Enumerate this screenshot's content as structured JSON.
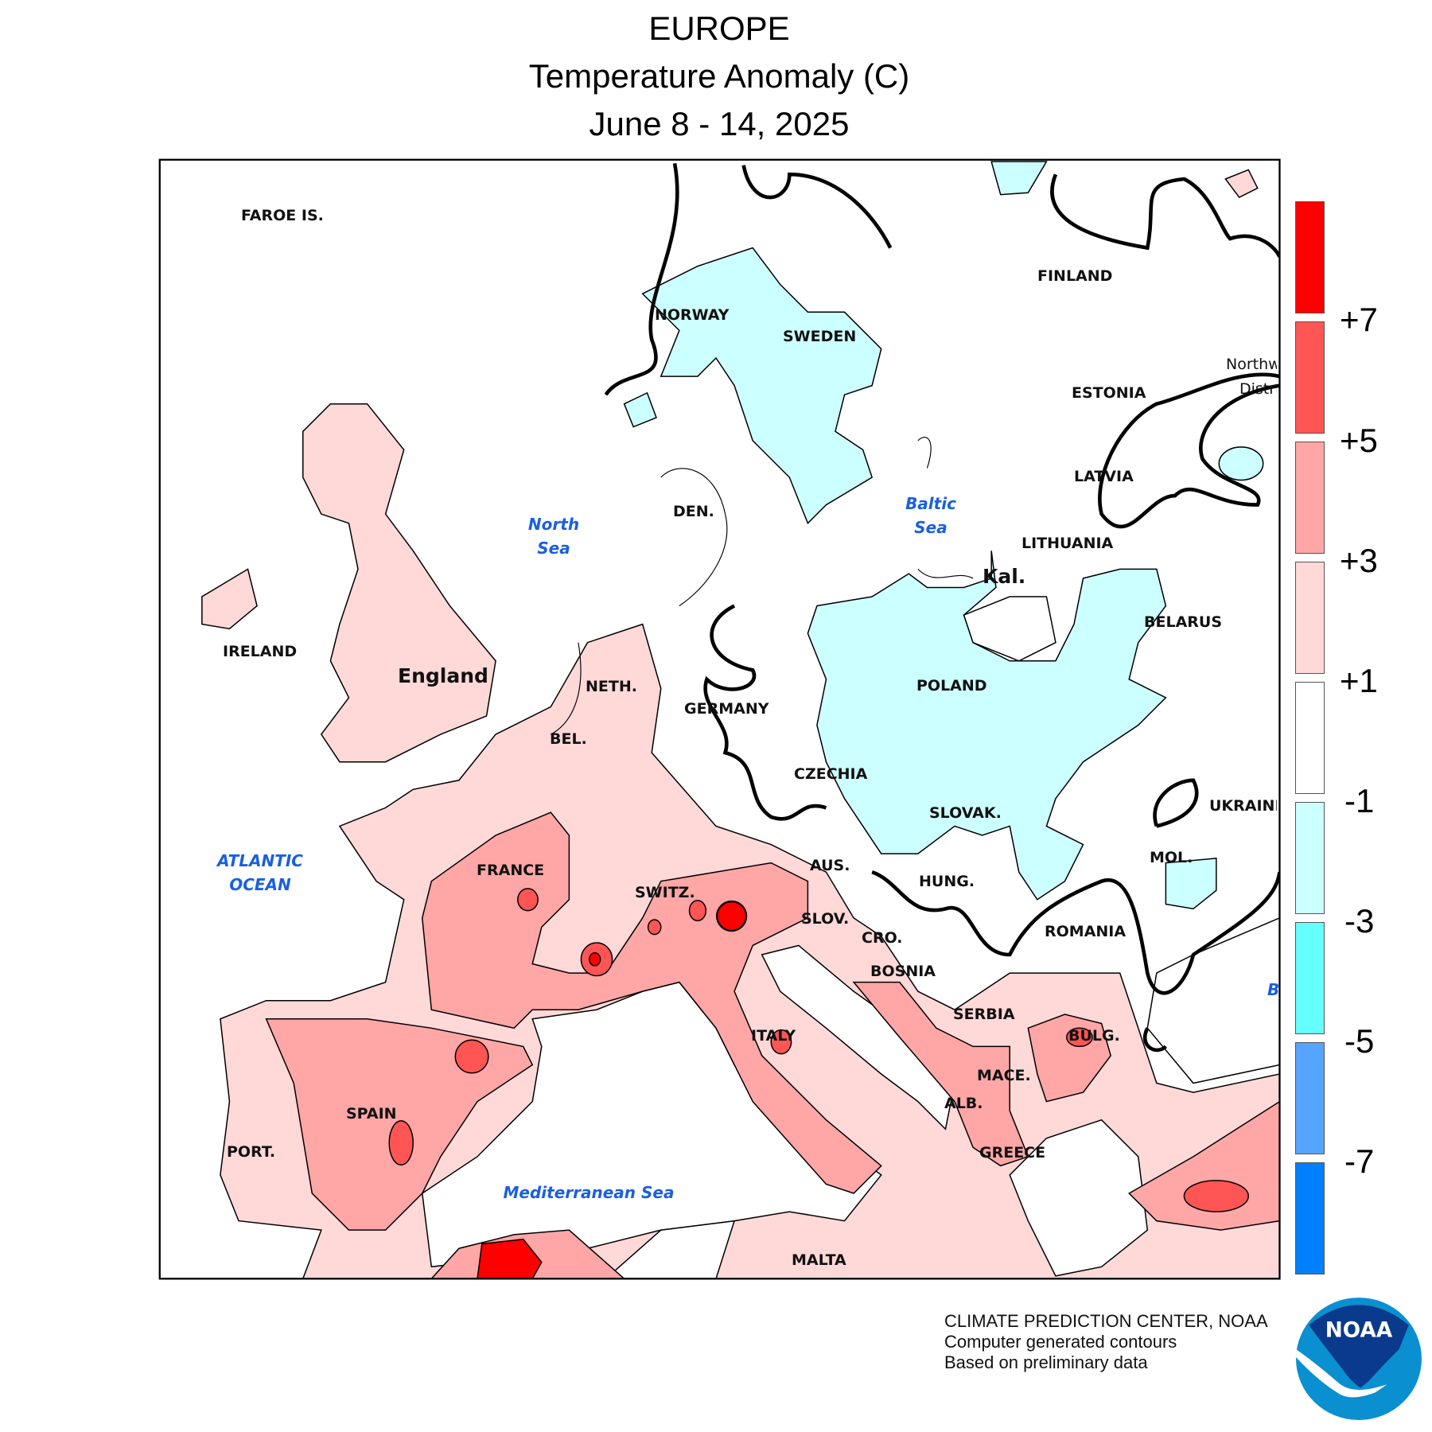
{
  "title": {
    "region": "EUROPE",
    "variable": "Temperature Anomaly (C)",
    "period": "June 8 - 14, 2025"
  },
  "legend": {
    "bins": [
      {
        "color": "#ff0000"
      },
      {
        "color": "#ff5555"
      },
      {
        "color": "#ffa6a6"
      },
      {
        "color": "#ffd8d8"
      },
      {
        "color": "#ffffff"
      },
      {
        "color": "#ccffff"
      },
      {
        "color": "#66ffff"
      },
      {
        "color": "#55a5ff"
      },
      {
        "color": "#0080ff"
      }
    ],
    "labels": [
      "+7",
      "+5",
      "+3",
      "+1",
      "-1",
      "-3",
      "-5",
      "-7"
    ]
  },
  "map": {
    "countries": {
      "faroe": "FAROE IS.",
      "norway": "NORWAY",
      "sweden": "SWEDEN",
      "finland": "FINLAND",
      "northwest1": "Northw",
      "northwest2": "Distri",
      "estonia": "ESTONIA",
      "latvia": "LATVIA",
      "lithuania": "LITHUANIA",
      "kal": "Kal.",
      "belarus": "BELARUS",
      "poland": "POLAND",
      "denmark": "DEN.",
      "ireland": "IRELAND",
      "england": "England",
      "netherlands": "NETH.",
      "germany": "GERMANY",
      "belgium": "BEL.",
      "czechia": "CZECHIA",
      "slovakia": "SLOVAK.",
      "ukraine": "UKRAINE",
      "moldova": "MOL.",
      "austria": "AUS.",
      "hungary": "HUNG.",
      "france": "FRANCE",
      "switzerland": "SWITZ.",
      "slovenia": "SLOV.",
      "croatia": "CRO.",
      "romania": "ROMANIA",
      "bosnia": "BOSNIA",
      "serbia": "SERBIA",
      "italy": "ITALY",
      "bulgaria": "BULG.",
      "macedonia": "MACE.",
      "albania": "ALB.",
      "spain": "SPAIN",
      "portugal": "PORT.",
      "greece": "GREECE",
      "malta": "MALTA"
    },
    "seas": {
      "north_sea_1": "North",
      "north_sea_2": "Sea",
      "baltic_1": "Baltic",
      "baltic_2": "Sea",
      "atlantic_1": "ATLANTIC",
      "atlantic_2": "OCEAN",
      "mediterranean": "Mediterranean Sea",
      "black_sea_partial": "B"
    }
  },
  "footer": {
    "line1": "CLIMATE PREDICTION CENTER, NOAA",
    "line2": "Computer generated contours",
    "line3": "Based on preliminary data"
  },
  "logo": {
    "text": "NOAA",
    "colors": {
      "dark": "#0a3a8c",
      "light": "#0a90d0"
    }
  }
}
